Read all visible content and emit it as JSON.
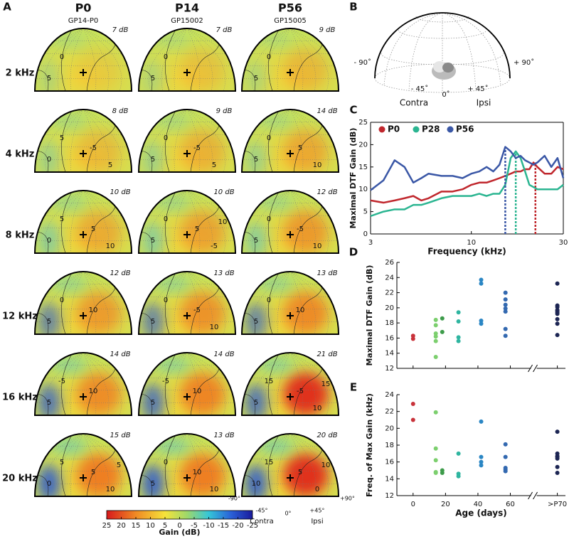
{
  "panel_labels": [
    "A",
    "B",
    "C",
    "D",
    "E"
  ],
  "panel_a": {
    "columns": [
      {
        "title": "P0",
        "subtitle": "GP14-P0"
      },
      {
        "title": "P14",
        "subtitle": "GP15002"
      },
      {
        "title": "P56",
        "subtitle": "GP15005"
      }
    ],
    "rows": [
      "2 kHz",
      "4 kHz",
      "8 kHz",
      "12 kHz",
      "16 kHz",
      "20 kHz"
    ],
    "maps": [
      [
        {
          "max_label": "7 dB",
          "contour_labels": [
            "0",
            "5"
          ]
        },
        {
          "max_label": "7 dB",
          "contour_labels": [
            "0",
            "5"
          ]
        },
        {
          "max_label": "9 dB",
          "contour_labels": [
            "0",
            "5"
          ]
        }
      ],
      [
        {
          "max_label": "8 dB",
          "contour_labels": [
            "5",
            "0",
            "-5",
            "5"
          ]
        },
        {
          "max_label": "9 dB",
          "contour_labels": [
            "0",
            "5",
            "-5",
            "5"
          ]
        },
        {
          "max_label": "14 dB",
          "contour_labels": [
            "0",
            "5",
            "5",
            "10"
          ]
        }
      ],
      [
        {
          "max_label": "10 dB",
          "contour_labels": [
            "5",
            "0",
            "5",
            "10"
          ]
        },
        {
          "max_label": "10 dB",
          "contour_labels": [
            "0",
            "5",
            "5",
            "-5",
            "10"
          ]
        },
        {
          "max_label": "12 dB",
          "contour_labels": [
            "0",
            "5",
            "-5",
            "10"
          ]
        }
      ],
      [
        {
          "max_label": "12 dB",
          "contour_labels": [
            "0",
            "5",
            "10"
          ]
        },
        {
          "max_label": "13 dB",
          "contour_labels": [
            "0",
            "5",
            "-5",
            "10"
          ]
        },
        {
          "max_label": "13 dB",
          "contour_labels": [
            "0",
            "5",
            "10"
          ]
        }
      ],
      [
        {
          "max_label": "14 dB",
          "contour_labels": [
            "-5",
            "5",
            "10"
          ]
        },
        {
          "max_label": "14 dB",
          "contour_labels": [
            "-5",
            "5",
            "10"
          ]
        },
        {
          "max_label": "21 dB",
          "contour_labels": [
            "15",
            "5",
            "-5",
            "10",
            "15"
          ]
        }
      ],
      [
        {
          "max_label": "15 dB",
          "contour_labels": [
            "5",
            "0",
            "5",
            "10",
            "5"
          ]
        },
        {
          "max_label": "13 dB",
          "contour_labels": [
            "0",
            "5",
            "10",
            "10"
          ]
        },
        {
          "max_label": "20 dB",
          "contour_labels": [
            "15",
            "10",
            "5",
            "0",
            "10"
          ]
        }
      ]
    ],
    "orientation_labels": {
      "left": "-90°",
      "right": "+90°",
      "left_mid": "-45°",
      "center": "0°",
      "right_mid": "+45°",
      "contra": "Contra",
      "ipsi": "Ipsi"
    },
    "colorbar": {
      "label": "Gain (dB)",
      "clim": [
        25,
        -25
      ],
      "ticks": [
        25,
        20,
        15,
        10,
        5,
        0,
        -5,
        -10,
        -15,
        -20,
        -25
      ]
    }
  },
  "panel_b": {
    "labels": {
      "left": "- 90˚",
      "right": "+ 90˚",
      "left_mid": "- 45˚",
      "center": "0˚",
      "right_mid": "+ 45˚",
      "contra": "Contra",
      "ipsi": "Ipsi"
    }
  },
  "chart_data": [
    {
      "type": "line",
      "x_label": "Frequency (kHz)",
      "y_label": "Maximal DTF Gain (dB)",
      "xscale": "log",
      "xlim": [
        3,
        30
      ],
      "xticks": [
        3,
        10,
        30
      ],
      "ylim": [
        0,
        25
      ],
      "yticks": [
        0,
        5,
        10,
        15,
        20,
        25
      ],
      "legend": "top-left",
      "x": [
        3,
        3.5,
        4,
        4.5,
        5,
        5.5,
        6,
        7,
        8,
        9,
        10,
        11,
        12,
        13,
        14,
        15,
        16,
        17,
        18,
        19,
        20,
        21,
        22,
        24,
        26,
        28,
        30
      ],
      "series": [
        {
          "name": "P0",
          "color": "#c0272d",
          "peak": 21.5,
          "values": [
            7.5,
            7,
            7.5,
            8,
            8.5,
            7.5,
            8,
            9.5,
            9.5,
            10,
            11,
            11.5,
            11.5,
            12,
            12.5,
            13,
            13.5,
            14,
            14,
            14.5,
            14.5,
            16,
            15,
            13.5,
            13.5,
            15,
            14.5
          ]
        },
        {
          "name": "P28",
          "color": "#2bb591",
          "peak": 17,
          "values": [
            4,
            5,
            5.5,
            5.5,
            6.5,
            6.5,
            7,
            8,
            8.5,
            8.5,
            8.5,
            9,
            8.5,
            9,
            9,
            11,
            17,
            18.5,
            17,
            14,
            11,
            10.5,
            10,
            10,
            10,
            10,
            11
          ]
        },
        {
          "name": "P56",
          "color": "#3a57a6",
          "peak": 15,
          "values": [
            9.8,
            12,
            16.5,
            15,
            11.5,
            12.5,
            13.5,
            13,
            13,
            12.5,
            13.5,
            14,
            15,
            14,
            15.5,
            19.5,
            18.5,
            17,
            17.5,
            16.5,
            16,
            15.5,
            16,
            17.5,
            15,
            17,
            12.5
          ]
        }
      ]
    },
    {
      "type": "scatter",
      "y_label": "Maximal DTF Gain (dB)",
      "xlim": [
        -10,
        94
      ],
      "xticks": [
        0,
        20,
        40,
        60,
        89
      ],
      "xticklabels": false,
      "axis_break": true,
      "ylim": [
        12,
        26
      ],
      "yticks": [
        12,
        14,
        16,
        18,
        20,
        22,
        24,
        26
      ],
      "series": [
        {
          "color": "#c8323a",
          "x": [
            0,
            0
          ],
          "values": [
            16.3,
            15.9
          ]
        },
        {
          "color": "#7ccf6e",
          "x": [
            14,
            14,
            14,
            14,
            14,
            14
          ],
          "values": [
            18.4,
            17.7,
            16.6,
            16.2,
            15.6,
            13.5
          ]
        },
        {
          "color": "#3d9b4a",
          "x": [
            18,
            18
          ],
          "values": [
            18.6,
            16.8
          ]
        },
        {
          "color": "#2fb5a0",
          "x": [
            28,
            28,
            28,
            28
          ],
          "values": [
            19.4,
            18.2,
            16.1,
            15.6
          ]
        },
        {
          "color": "#2a86c4",
          "x": [
            42,
            42,
            42,
            42
          ],
          "values": [
            23.7,
            23.2,
            18.3,
            17.9
          ]
        },
        {
          "color": "#3369b0",
          "x": [
            57,
            57,
            57,
            57,
            57,
            57,
            57
          ],
          "values": [
            22.0,
            21.1,
            20.4,
            19.9,
            19.5,
            17.2,
            16.3
          ]
        },
        {
          "color": "#1c2553",
          "x": [
            89,
            89,
            89,
            89,
            89,
            89,
            89,
            89,
            89,
            89
          ],
          "values": [
            23.2,
            20.3,
            20.1,
            19.7,
            19.6,
            19.4,
            19.2,
            18.5,
            17.9,
            16.4
          ]
        }
      ]
    },
    {
      "type": "scatter",
      "x_label": "Age (days)",
      "y_label": "Freq. of Max Gain (kHz)",
      "xlim": [
        -10,
        94
      ],
      "xticks": [
        0,
        20,
        40,
        60,
        {
          "value": 89,
          "label": ">P70"
        }
      ],
      "axis_break": true,
      "ylim": [
        12,
        24
      ],
      "yticks": [
        12,
        14,
        16,
        18,
        20,
        22,
        24
      ],
      "series": [
        {
          "color": "#c8323a",
          "x": [
            0,
            0
          ],
          "values": [
            22.9,
            21.0
          ]
        },
        {
          "color": "#7ccf6e",
          "x": [
            14,
            14,
            14,
            14,
            14
          ],
          "values": [
            21.9,
            17.6,
            16.2,
            14.8,
            14.7
          ]
        },
        {
          "color": "#3d9b4a",
          "x": [
            18,
            18
          ],
          "values": [
            15.0,
            14.7
          ]
        },
        {
          "color": "#2fb5a0",
          "x": [
            28,
            28,
            28
          ],
          "values": [
            17.0,
            14.6,
            14.3
          ]
        },
        {
          "color": "#2a86c4",
          "x": [
            42,
            42,
            42,
            42
          ],
          "values": [
            20.8,
            16.6,
            16.0,
            15.6
          ]
        },
        {
          "color": "#3369b0",
          "x": [
            57,
            57,
            57,
            57,
            57
          ],
          "values": [
            18.1,
            16.6,
            15.3,
            15.1,
            14.9
          ]
        },
        {
          "color": "#1c2553",
          "x": [
            89,
            89,
            89,
            89,
            89,
            89,
            89
          ],
          "values": [
            19.6,
            17.0,
            16.7,
            16.6,
            16.4,
            15.4,
            14.7
          ]
        }
      ]
    }
  ]
}
